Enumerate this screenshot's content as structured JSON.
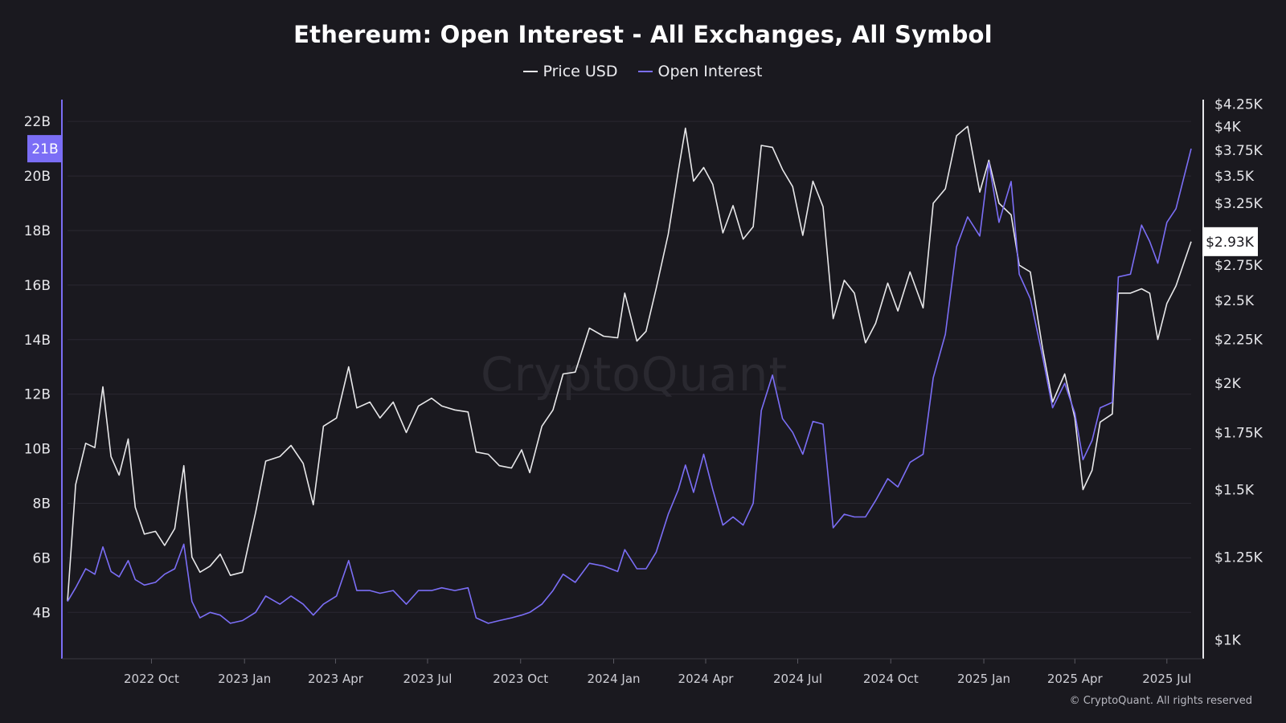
{
  "title": "Ethereum: Open Interest - All Exchanges, All Symbol",
  "watermark": "CryptoQuant",
  "copyright": "© CryptoQuant. All rights reserved",
  "legend": [
    {
      "name": "Price USD",
      "color": "#e8e8ea"
    },
    {
      "name": "Open Interest",
      "color": "#7b6ef6"
    }
  ],
  "chart_data": {
    "type": "line",
    "x_type": "date",
    "x_range": [
      "2022-07-10",
      "2025-07-25"
    ],
    "x_ticks": [
      {
        "label": "2022 Oct",
        "date": "2022-10-01"
      },
      {
        "label": "2023 Jan",
        "date": "2023-01-01"
      },
      {
        "label": "2023 Apr",
        "date": "2023-04-01"
      },
      {
        "label": "2023 Jul",
        "date": "2023-07-01"
      },
      {
        "label": "2023 Oct",
        "date": "2023-10-01"
      },
      {
        "label": "2024 Jan",
        "date": "2024-01-01"
      },
      {
        "label": "2024 Apr",
        "date": "2024-04-01"
      },
      {
        "label": "2024 Jul",
        "date": "2024-07-01"
      },
      {
        "label": "2024 Oct",
        "date": "2024-10-01"
      },
      {
        "label": "2025 Jan",
        "date": "2025-01-01"
      },
      {
        "label": "2025 Apr",
        "date": "2025-04-01"
      },
      {
        "label": "2025 Jul",
        "date": "2025-07-01"
      }
    ],
    "y_left": {
      "unit": "B",
      "range": [
        2.3,
        22.8
      ],
      "ticks": [
        {
          "label": "4B",
          "value": 4
        },
        {
          "label": "6B",
          "value": 6
        },
        {
          "label": "8B",
          "value": 8
        },
        {
          "label": "10B",
          "value": 10
        },
        {
          "label": "12B",
          "value": 12
        },
        {
          "label": "14B",
          "value": 14
        },
        {
          "label": "16B",
          "value": 16
        },
        {
          "label": "18B",
          "value": 18
        },
        {
          "label": "20B",
          "value": 20
        },
        {
          "label": "22B",
          "value": 22
        }
      ],
      "current_label": "21B",
      "current_value": 21
    },
    "y_right": {
      "scale": "log",
      "range": [
        950,
        4300
      ],
      "ticks": [
        {
          "label": "$1K",
          "value": 1000
        },
        {
          "label": "$1.25K",
          "value": 1250
        },
        {
          "label": "$1.5K",
          "value": 1500
        },
        {
          "label": "$1.75K",
          "value": 1750
        },
        {
          "label": "$2K",
          "value": 2000
        },
        {
          "label": "$2.25K",
          "value": 2250
        },
        {
          "label": "$2.5K",
          "value": 2500
        },
        {
          "label": "$2.75K",
          "value": 2750
        },
        {
          "label": "$3.25K",
          "value": 3250
        },
        {
          "label": "$3.5K",
          "value": 3500
        },
        {
          "label": "$3.75K",
          "value": 3750
        },
        {
          "label": "$4K",
          "value": 4000
        },
        {
          "label": "$4.25K",
          "value": 4250
        }
      ],
      "current_label": "$2.93K",
      "current_value": 2930
    },
    "grid": true,
    "legend_position": "top-center",
    "series": [
      {
        "name": "Price USD",
        "axis": "right",
        "color": "#e8e8ea",
        "points": [
          [
            "2022-07-10",
            1110
          ],
          [
            "2022-07-18",
            1520
          ],
          [
            "2022-07-28",
            1700
          ],
          [
            "2022-08-06",
            1680
          ],
          [
            "2022-08-14",
            1980
          ],
          [
            "2022-08-22",
            1640
          ],
          [
            "2022-08-30",
            1560
          ],
          [
            "2022-09-08",
            1720
          ],
          [
            "2022-09-15",
            1430
          ],
          [
            "2022-09-24",
            1330
          ],
          [
            "2022-10-05",
            1340
          ],
          [
            "2022-10-14",
            1290
          ],
          [
            "2022-10-24",
            1350
          ],
          [
            "2022-11-02",
            1600
          ],
          [
            "2022-11-10",
            1250
          ],
          [
            "2022-11-18",
            1200
          ],
          [
            "2022-11-28",
            1220
          ],
          [
            "2022-12-08",
            1260
          ],
          [
            "2022-12-18",
            1190
          ],
          [
            "2022-12-30",
            1200
          ],
          [
            "2023-01-12",
            1410
          ],
          [
            "2023-01-22",
            1620
          ],
          [
            "2023-02-05",
            1640
          ],
          [
            "2023-02-16",
            1690
          ],
          [
            "2023-02-28",
            1610
          ],
          [
            "2023-03-10",
            1440
          ],
          [
            "2023-03-20",
            1780
          ],
          [
            "2023-04-02",
            1820
          ],
          [
            "2023-04-14",
            2090
          ],
          [
            "2023-04-22",
            1870
          ],
          [
            "2023-05-05",
            1900
          ],
          [
            "2023-05-15",
            1820
          ],
          [
            "2023-05-28",
            1900
          ],
          [
            "2023-06-10",
            1750
          ],
          [
            "2023-06-22",
            1880
          ],
          [
            "2023-07-05",
            1920
          ],
          [
            "2023-07-15",
            1880
          ],
          [
            "2023-07-28",
            1860
          ],
          [
            "2023-08-10",
            1850
          ],
          [
            "2023-08-18",
            1660
          ],
          [
            "2023-08-30",
            1650
          ],
          [
            "2023-09-10",
            1600
          ],
          [
            "2023-09-22",
            1590
          ],
          [
            "2023-10-02",
            1670
          ],
          [
            "2023-10-10",
            1570
          ],
          [
            "2023-10-22",
            1780
          ],
          [
            "2023-11-02",
            1860
          ],
          [
            "2023-11-12",
            2050
          ],
          [
            "2023-11-24",
            2060
          ],
          [
            "2023-12-08",
            2320
          ],
          [
            "2023-12-22",
            2270
          ],
          [
            "2024-01-05",
            2260
          ],
          [
            "2024-01-12",
            2550
          ],
          [
            "2024-01-24",
            2240
          ],
          [
            "2024-02-02",
            2300
          ],
          [
            "2024-02-12",
            2580
          ],
          [
            "2024-02-24",
            2990
          ],
          [
            "2024-03-05",
            3550
          ],
          [
            "2024-03-12",
            3980
          ],
          [
            "2024-03-20",
            3450
          ],
          [
            "2024-03-30",
            3580
          ],
          [
            "2024-04-08",
            3420
          ],
          [
            "2024-04-18",
            3000
          ],
          [
            "2024-04-28",
            3230
          ],
          [
            "2024-05-08",
            2950
          ],
          [
            "2024-05-18",
            3050
          ],
          [
            "2024-05-26",
            3800
          ],
          [
            "2024-06-06",
            3780
          ],
          [
            "2024-06-16",
            3560
          ],
          [
            "2024-06-26",
            3400
          ],
          [
            "2024-07-06",
            2980
          ],
          [
            "2024-07-16",
            3450
          ],
          [
            "2024-07-26",
            3220
          ],
          [
            "2024-08-05",
            2380
          ],
          [
            "2024-08-16",
            2640
          ],
          [
            "2024-08-26",
            2550
          ],
          [
            "2024-09-06",
            2230
          ],
          [
            "2024-09-16",
            2350
          ],
          [
            "2024-09-28",
            2620
          ],
          [
            "2024-10-08",
            2430
          ],
          [
            "2024-10-20",
            2700
          ],
          [
            "2024-11-02",
            2450
          ],
          [
            "2024-11-12",
            3250
          ],
          [
            "2024-11-24",
            3380
          ],
          [
            "2024-12-05",
            3900
          ],
          [
            "2024-12-16",
            4000
          ],
          [
            "2024-12-28",
            3350
          ],
          [
            "2025-01-06",
            3650
          ],
          [
            "2025-01-16",
            3250
          ],
          [
            "2025-01-28",
            3150
          ],
          [
            "2025-02-05",
            2750
          ],
          [
            "2025-02-16",
            2700
          ],
          [
            "2025-02-28",
            2200
          ],
          [
            "2025-03-10",
            1900
          ],
          [
            "2025-03-22",
            2050
          ],
          [
            "2025-04-01",
            1820
          ],
          [
            "2025-04-09",
            1500
          ],
          [
            "2025-04-18",
            1580
          ],
          [
            "2025-04-26",
            1800
          ],
          [
            "2025-05-08",
            1840
          ],
          [
            "2025-05-14",
            2550
          ],
          [
            "2025-05-26",
            2550
          ],
          [
            "2025-06-06",
            2580
          ],
          [
            "2025-06-14",
            2550
          ],
          [
            "2025-06-22",
            2250
          ],
          [
            "2025-07-01",
            2480
          ],
          [
            "2025-07-10",
            2600
          ],
          [
            "2025-07-25",
            2930
          ]
        ]
      },
      {
        "name": "Open Interest",
        "axis": "left",
        "color": "#7b6ef6",
        "points": [
          [
            "2022-07-10",
            4.4
          ],
          [
            "2022-07-18",
            4.9
          ],
          [
            "2022-07-28",
            5.6
          ],
          [
            "2022-08-06",
            5.4
          ],
          [
            "2022-08-14",
            6.4
          ],
          [
            "2022-08-22",
            5.5
          ],
          [
            "2022-08-30",
            5.3
          ],
          [
            "2022-09-08",
            5.9
          ],
          [
            "2022-09-15",
            5.2
          ],
          [
            "2022-09-24",
            5.0
          ],
          [
            "2022-10-05",
            5.1
          ],
          [
            "2022-10-14",
            5.4
          ],
          [
            "2022-10-24",
            5.6
          ],
          [
            "2022-11-02",
            6.5
          ],
          [
            "2022-11-10",
            4.4
          ],
          [
            "2022-11-18",
            3.8
          ],
          [
            "2022-11-28",
            4.0
          ],
          [
            "2022-12-08",
            3.9
          ],
          [
            "2022-12-18",
            3.6
          ],
          [
            "2022-12-30",
            3.7
          ],
          [
            "2023-01-12",
            4.0
          ],
          [
            "2023-01-22",
            4.6
          ],
          [
            "2023-02-05",
            4.3
          ],
          [
            "2023-02-16",
            4.6
          ],
          [
            "2023-02-28",
            4.3
          ],
          [
            "2023-03-10",
            3.9
          ],
          [
            "2023-03-20",
            4.3
          ],
          [
            "2023-04-02",
            4.6
          ],
          [
            "2023-04-14",
            5.9
          ],
          [
            "2023-04-22",
            4.8
          ],
          [
            "2023-05-05",
            4.8
          ],
          [
            "2023-05-15",
            4.7
          ],
          [
            "2023-05-28",
            4.8
          ],
          [
            "2023-06-10",
            4.3
          ],
          [
            "2023-06-22",
            4.8
          ],
          [
            "2023-07-05",
            4.8
          ],
          [
            "2023-07-15",
            4.9
          ],
          [
            "2023-07-28",
            4.8
          ],
          [
            "2023-08-10",
            4.9
          ],
          [
            "2023-08-18",
            3.8
          ],
          [
            "2023-08-30",
            3.6
          ],
          [
            "2023-09-10",
            3.7
          ],
          [
            "2023-09-22",
            3.8
          ],
          [
            "2023-10-02",
            3.9
          ],
          [
            "2023-10-10",
            4.0
          ],
          [
            "2023-10-22",
            4.3
          ],
          [
            "2023-11-02",
            4.8
          ],
          [
            "2023-11-12",
            5.4
          ],
          [
            "2023-11-24",
            5.1
          ],
          [
            "2023-12-08",
            5.8
          ],
          [
            "2023-12-22",
            5.7
          ],
          [
            "2024-01-05",
            5.5
          ],
          [
            "2024-01-12",
            6.3
          ],
          [
            "2024-01-24",
            5.6
          ],
          [
            "2024-02-02",
            5.6
          ],
          [
            "2024-02-12",
            6.2
          ],
          [
            "2024-02-24",
            7.6
          ],
          [
            "2024-03-05",
            8.5
          ],
          [
            "2024-03-12",
            9.4
          ],
          [
            "2024-03-20",
            8.4
          ],
          [
            "2024-03-30",
            9.8
          ],
          [
            "2024-04-08",
            8.5
          ],
          [
            "2024-04-18",
            7.2
          ],
          [
            "2024-04-28",
            7.5
          ],
          [
            "2024-05-08",
            7.2
          ],
          [
            "2024-05-18",
            8.0
          ],
          [
            "2024-05-26",
            11.4
          ],
          [
            "2024-06-06",
            12.7
          ],
          [
            "2024-06-16",
            11.1
          ],
          [
            "2024-06-26",
            10.6
          ],
          [
            "2024-07-06",
            9.8
          ],
          [
            "2024-07-16",
            11.0
          ],
          [
            "2024-07-26",
            10.9
          ],
          [
            "2024-08-05",
            7.1
          ],
          [
            "2024-08-16",
            7.6
          ],
          [
            "2024-08-26",
            7.5
          ],
          [
            "2024-09-06",
            7.5
          ],
          [
            "2024-09-16",
            8.1
          ],
          [
            "2024-09-28",
            8.9
          ],
          [
            "2024-10-08",
            8.6
          ],
          [
            "2024-10-20",
            9.5
          ],
          [
            "2024-11-02",
            9.8
          ],
          [
            "2024-11-12",
            12.6
          ],
          [
            "2024-11-24",
            14.2
          ],
          [
            "2024-12-05",
            17.4
          ],
          [
            "2024-12-16",
            18.5
          ],
          [
            "2024-12-28",
            17.8
          ],
          [
            "2025-01-06",
            20.5
          ],
          [
            "2025-01-16",
            18.3
          ],
          [
            "2025-01-28",
            19.8
          ],
          [
            "2025-02-05",
            16.4
          ],
          [
            "2025-02-16",
            15.5
          ],
          [
            "2025-02-28",
            13.4
          ],
          [
            "2025-03-10",
            11.5
          ],
          [
            "2025-03-22",
            12.4
          ],
          [
            "2025-04-01",
            11.3
          ],
          [
            "2025-04-09",
            9.6
          ],
          [
            "2025-04-18",
            10.3
          ],
          [
            "2025-04-26",
            11.5
          ],
          [
            "2025-05-08",
            11.7
          ],
          [
            "2025-05-14",
            16.3
          ],
          [
            "2025-05-26",
            16.4
          ],
          [
            "2025-06-06",
            18.2
          ],
          [
            "2025-06-14",
            17.6
          ],
          [
            "2025-06-22",
            16.8
          ],
          [
            "2025-07-01",
            18.3
          ],
          [
            "2025-07-10",
            18.8
          ],
          [
            "2025-07-25",
            21.0
          ]
        ]
      }
    ]
  }
}
